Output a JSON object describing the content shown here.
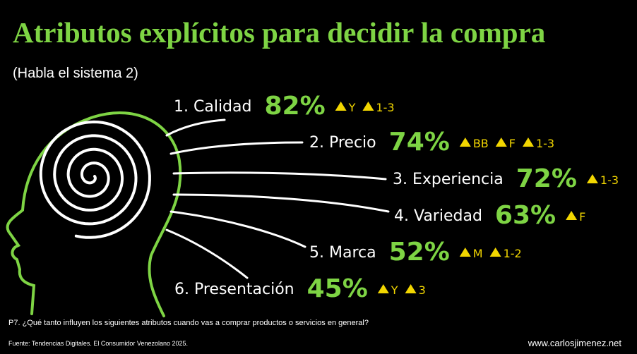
{
  "title": "Atributos explícitos para decidir la compra",
  "subtitle": "(Habla el sistema 2)",
  "items": [
    {
      "label": "1. Calidad",
      "value": "82%",
      "badges": [
        "Y",
        "1-3"
      ]
    },
    {
      "label": "2. Precio",
      "value": "74%",
      "badges": [
        "BB",
        "F",
        "1-3"
      ]
    },
    {
      "label": "3. Experiencia",
      "value": "72%",
      "badges": [
        "1-3"
      ]
    },
    {
      "label": "4. Variedad",
      "value": "63%",
      "badges": [
        "F"
      ]
    },
    {
      "label": "5. Marca",
      "value": "52%",
      "badges": [
        "M",
        "1-2"
      ]
    },
    {
      "label": "6. Presentación",
      "value": "45%",
      "badges": [
        "Y",
        "3"
      ]
    }
  ],
  "question": "P7. ¿Qué tanto influyen los siguientes atributos cuando vas a comprar productos o servicios en general?",
  "source": "Fuente: Tendencias Digitales. El Consumidor Venezolano 2025.",
  "website": "www.carlosjimenez.net"
}
